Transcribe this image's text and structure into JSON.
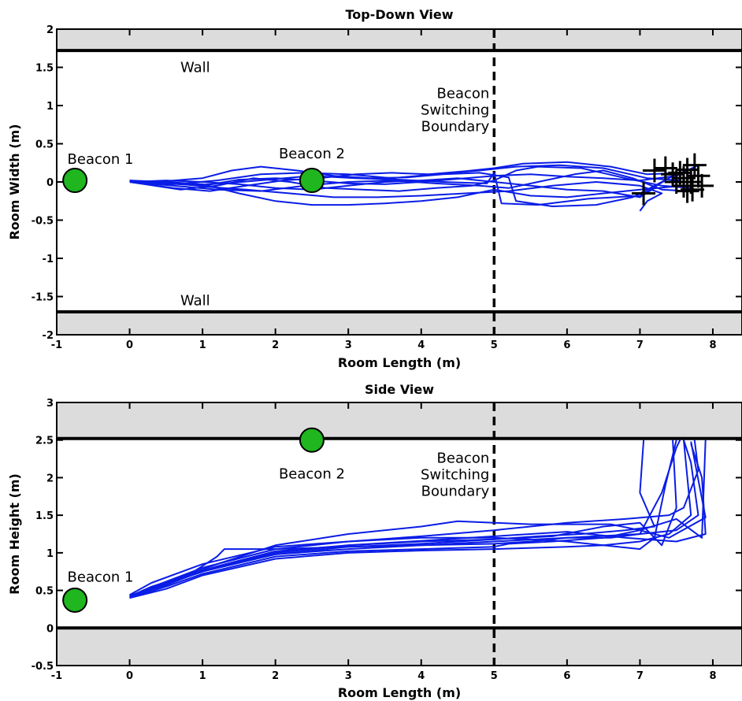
{
  "chart_data": [
    {
      "type": "line",
      "title": "Top-Down View",
      "xlabel": "Room Length (m)",
      "ylabel": "Room Width (m)",
      "xlim": [
        -1,
        8.4
      ],
      "ylim": [
        -2,
        2
      ],
      "xticks": [
        "-1",
        "0",
        "1",
        "2",
        "3",
        "4",
        "5",
        "6",
        "7",
        "8"
      ],
      "yticks": [
        "-2",
        "-1.5",
        "-1",
        "-0.5",
        "0",
        "0.5",
        "1",
        "1.5",
        "2"
      ],
      "walls": [
        1.72,
        -1.7
      ],
      "wall_labels": [
        {
          "text": "Wall",
          "x": 0.9,
          "y": 1.5
        },
        {
          "text": "Wall",
          "x": 0.9,
          "y": -1.55
        }
      ],
      "boundary": {
        "x": 5,
        "label_lines": [
          "Beacon",
          "Switching",
          "Boundary"
        ],
        "label_y": 1.1
      },
      "beacons": [
        {
          "name": "Beacon 1",
          "x": -0.75,
          "y": 0.02,
          "label_x": -0.4,
          "label_y": 0.3
        },
        {
          "name": "Beacon 2",
          "x": 2.5,
          "y": 0.02,
          "label_x": 2.5,
          "label_y": 0.37
        }
      ],
      "endpoints": [
        [
          7.2,
          0.15
        ],
        [
          7.35,
          0.18
        ],
        [
          7.45,
          0.1
        ],
        [
          7.55,
          0.12
        ],
        [
          7.6,
          0.05
        ],
        [
          7.65,
          0.16
        ],
        [
          7.7,
          0.0
        ],
        [
          7.72,
          -0.1
        ],
        [
          7.75,
          0.22
        ],
        [
          7.8,
          0.08
        ],
        [
          7.85,
          -0.05
        ],
        [
          7.05,
          -0.15
        ],
        [
          7.65,
          -0.12
        ],
        [
          7.6,
          -0.05
        ],
        [
          7.5,
          0.0
        ]
      ],
      "series": [
        {
          "x": [
            0,
            0.5,
            1.0,
            1.5,
            2.0,
            2.5,
            3.0,
            3.5,
            4.0,
            4.5,
            5.0,
            5.5,
            6.0,
            6.5,
            7.0,
            7.5,
            7.8
          ],
          "y": [
            0.02,
            -0.02,
            -0.05,
            0.03,
            0.05,
            0.02,
            -0.02,
            -0.03,
            0.0,
            0.04,
            0.08,
            0.1,
            0.07,
            0.05,
            0.02,
            0.08,
            0.22
          ]
        },
        {
          "x": [
            0,
            0.6,
            1.1,
            1.6,
            2.1,
            2.6,
            3.1,
            3.6,
            4.1,
            4.6,
            5.0,
            5.4,
            6.0,
            6.6,
            7.1,
            7.6
          ],
          "y": [
            0.0,
            -0.08,
            -0.12,
            -0.05,
            0.02,
            0.05,
            0.1,
            0.12,
            0.1,
            0.14,
            0.18,
            0.24,
            0.26,
            0.2,
            0.1,
            0.12
          ]
        },
        {
          "x": [
            0,
            0.5,
            1.0,
            1.5,
            2.0,
            2.5,
            3.0,
            3.5,
            4.0,
            4.5,
            5.0,
            5.5,
            6.0,
            6.5,
            7.0,
            7.6
          ],
          "y": [
            0.01,
            0.0,
            -0.03,
            -0.15,
            -0.25,
            -0.3,
            -0.3,
            -0.28,
            -0.25,
            -0.2,
            -0.1,
            -0.18,
            -0.2,
            -0.15,
            -0.1,
            -0.05
          ]
        },
        {
          "x": [
            0,
            0.7,
            1.2,
            1.7,
            2.2,
            2.7,
            3.2,
            3.7,
            4.2,
            4.7,
            5.0,
            5.3,
            5.6,
            6.2,
            6.8,
            7.3,
            7.7
          ],
          "y": [
            0.0,
            -0.1,
            -0.05,
            0.05,
            0.0,
            -0.08,
            -0.1,
            -0.12,
            -0.08,
            -0.05,
            0.02,
            0.15,
            0.2,
            0.18,
            0.05,
            -0.05,
            -0.08
          ]
        },
        {
          "x": [
            0,
            0.5,
            1.0,
            1.4,
            1.8,
            2.3,
            2.8,
            3.3,
            3.8,
            4.3,
            4.8,
            5.2,
            5.3,
            5.8,
            6.4,
            6.9,
            7.5
          ],
          "y": [
            0.0,
            0.01,
            0.05,
            0.15,
            0.2,
            0.15,
            0.08,
            0.05,
            0.06,
            0.1,
            0.12,
            0.06,
            -0.25,
            -0.32,
            -0.3,
            -0.2,
            0.1
          ]
        },
        {
          "x": [
            0,
            0.6,
            1.2,
            1.8,
            2.4,
            3.0,
            3.6,
            4.2,
            4.8,
            5.2,
            5.6,
            6.1,
            6.5,
            6.9,
            7.3,
            7.65
          ],
          "y": [
            0.0,
            -0.05,
            -0.1,
            -0.12,
            -0.05,
            0.0,
            0.02,
            -0.02,
            -0.05,
            -0.08,
            0.0,
            0.1,
            0.15,
            0.05,
            -0.1,
            -0.12
          ]
        },
        {
          "x": [
            0,
            0.4,
            0.9,
            1.3,
            1.9,
            2.5,
            3.1,
            3.7,
            4.3,
            4.9,
            5.0,
            5.1,
            5.6,
            6.3,
            7.0,
            7.4
          ],
          "y": [
            0.01,
            0.0,
            -0.04,
            -0.02,
            0.03,
            0.08,
            0.05,
            0.03,
            0.0,
            -0.02,
            0.12,
            -0.28,
            -0.3,
            -0.22,
            -0.18,
            0.05
          ]
        },
        {
          "x": [
            0,
            0.5,
            1.0,
            1.5,
            2.0,
            2.5,
            3.0,
            3.5,
            4.0,
            4.5,
            5.0,
            5.5,
            6.0,
            6.5,
            7.0,
            7.2
          ],
          "y": [
            0.0,
            0.02,
            0.0,
            -0.03,
            -0.08,
            -0.1,
            -0.05,
            0.0,
            0.02,
            0.05,
            0.0,
            -0.05,
            -0.1,
            -0.12,
            -0.2,
            -0.08
          ]
        },
        {
          "x": [
            0,
            0.5,
            1.0,
            1.6,
            2.2,
            2.8,
            3.4,
            4.0,
            4.6,
            5.2,
            5.8,
            6.4,
            7.0,
            7.3,
            7.1,
            7.0
          ],
          "y": [
            0.02,
            0.0,
            -0.06,
            -0.1,
            -0.15,
            -0.2,
            -0.2,
            -0.18,
            -0.15,
            -0.12,
            -0.05,
            0.0,
            -0.05,
            -0.15,
            -0.25,
            -0.38
          ]
        },
        {
          "x": [
            0,
            0.6,
            1.2,
            1.8,
            2.4,
            3.0,
            3.6,
            4.2,
            4.8,
            5.3,
            5.9,
            6.5,
            7.1,
            7.55
          ],
          "y": [
            0.0,
            -0.03,
            0.02,
            0.1,
            0.12,
            0.1,
            0.05,
            0.1,
            0.15,
            0.2,
            0.22,
            0.18,
            0.05,
            0.02
          ]
        }
      ]
    },
    {
      "type": "line",
      "title": "Side View",
      "xlabel": "Room Length (m)",
      "ylabel": "Room Height (m)",
      "xlim": [
        -1,
        8.4
      ],
      "ylim": [
        -0.5,
        3
      ],
      "xticks": [
        "-1",
        "0",
        "1",
        "2",
        "3",
        "4",
        "5",
        "6",
        "7",
        "8"
      ],
      "yticks": [
        "-0.5",
        "0",
        "0.5",
        "1",
        "1.5",
        "2",
        "2.5",
        "3"
      ],
      "walls": [
        2.52,
        0.0
      ],
      "boundary": {
        "x": 5,
        "label_lines": [
          "Beacon",
          "Switching",
          "Boundary"
        ],
        "label_y": 2.2
      },
      "beacons": [
        {
          "name": "Beacon 1",
          "x": -0.75,
          "y": 0.37,
          "label_x": -0.4,
          "label_y": 0.68
        },
        {
          "name": "Beacon 2",
          "x": 2.5,
          "y": 2.5,
          "label_x": 2.5,
          "label_y": 2.05
        }
      ],
      "series": [
        {
          "x": [
            0,
            0.3,
            0.8,
            1.2,
            1.3,
            2.0,
            3.0,
            4.0,
            5.0,
            5.5,
            6.0,
            6.6,
            7.0,
            7.3,
            7.5,
            7.55
          ],
          "y": [
            0.42,
            0.55,
            0.7,
            0.95,
            1.05,
            1.05,
            1.08,
            1.1,
            1.12,
            1.15,
            1.2,
            1.2,
            1.25,
            1.8,
            2.4,
            2.5
          ]
        },
        {
          "x": [
            0,
            0.4,
            1.0,
            2.0,
            3.0,
            4.0,
            5.0,
            6.0,
            7.0,
            7.5,
            7.8,
            7.7,
            7.6
          ],
          "y": [
            0.4,
            0.55,
            0.75,
            0.98,
            1.05,
            1.1,
            1.15,
            1.2,
            1.25,
            1.3,
            1.5,
            2.2,
            2.5
          ]
        },
        {
          "x": [
            0,
            0.5,
            1.2,
            2.0,
            3.0,
            4.0,
            4.5,
            5.0,
            5.5,
            6.0,
            6.6,
            7.0,
            7.4,
            7.9,
            7.7
          ],
          "y": [
            0.43,
            0.6,
            0.85,
            1.1,
            1.25,
            1.35,
            1.42,
            1.4,
            1.38,
            1.38,
            1.38,
            1.3,
            1.2,
            1.47,
            2.48
          ]
        },
        {
          "x": [
            0,
            0.4,
            1.0,
            2.0,
            3.0,
            4.0,
            5.0,
            5.5,
            6.0,
            6.5,
            7.0,
            7.2,
            7.35,
            7.5
          ],
          "y": [
            0.42,
            0.58,
            0.8,
            1.05,
            1.15,
            1.2,
            1.2,
            1.18,
            1.15,
            1.1,
            1.05,
            1.2,
            1.9,
            2.5
          ]
        },
        {
          "x": [
            0,
            0.5,
            1.0,
            2.0,
            3.0,
            4.0,
            5.0,
            5.2,
            5.8,
            6.5,
            7.0,
            7.5,
            7.85,
            7.9
          ],
          "y": [
            0.4,
            0.55,
            0.72,
            0.95,
            1.02,
            1.05,
            1.08,
            1.12,
            1.15,
            1.2,
            1.3,
            1.45,
            1.2,
            2.5
          ]
        },
        {
          "x": [
            0,
            0.4,
            1.1,
            2.0,
            3.0,
            4.0,
            5.0,
            5.6,
            6.2,
            6.8,
            7.2,
            7.0,
            7.05
          ],
          "y": [
            0.41,
            0.56,
            0.78,
            1.0,
            1.1,
            1.15,
            1.18,
            1.22,
            1.25,
            1.3,
            1.35,
            1.8,
            2.5
          ]
        },
        {
          "x": [
            0,
            0.3,
            1.0,
            2.0,
            3.0,
            4.0,
            5.0,
            6.0,
            6.8,
            7.4,
            7.6,
            7.8,
            7.75
          ],
          "y": [
            0.44,
            0.6,
            0.85,
            1.08,
            1.15,
            1.22,
            1.3,
            1.4,
            1.45,
            1.5,
            1.6,
            2.1,
            2.5
          ]
        },
        {
          "x": [
            0,
            0.5,
            1.0,
            2.0,
            3.0,
            4.0,
            5.0,
            6.0,
            6.5,
            7.0,
            7.4,
            7.7,
            7.6
          ],
          "y": [
            0.4,
            0.52,
            0.7,
            0.92,
            1.0,
            1.03,
            1.05,
            1.08,
            1.1,
            1.15,
            1.25,
            1.5,
            2.5
          ]
        },
        {
          "x": [
            0,
            0.4,
            1.2,
            2.0,
            3.0,
            4.0,
            5.0,
            6.0,
            6.8,
            7.5,
            7.9,
            7.85,
            7.7
          ],
          "y": [
            0.4,
            0.58,
            0.82,
            1.02,
            1.1,
            1.16,
            1.22,
            1.28,
            1.2,
            1.15,
            1.25,
            2.0,
            2.45
          ]
        },
        {
          "x": [
            0,
            0.5,
            1.0,
            2.0,
            3.0,
            4.0,
            5.0,
            5.8,
            6.5,
            7.0,
            7.3,
            7.5,
            7.45
          ],
          "y": [
            0.42,
            0.57,
            0.76,
            0.98,
            1.08,
            1.12,
            1.18,
            1.22,
            1.35,
            1.4,
            1.1,
            1.6,
            2.5
          ]
        }
      ]
    }
  ]
}
